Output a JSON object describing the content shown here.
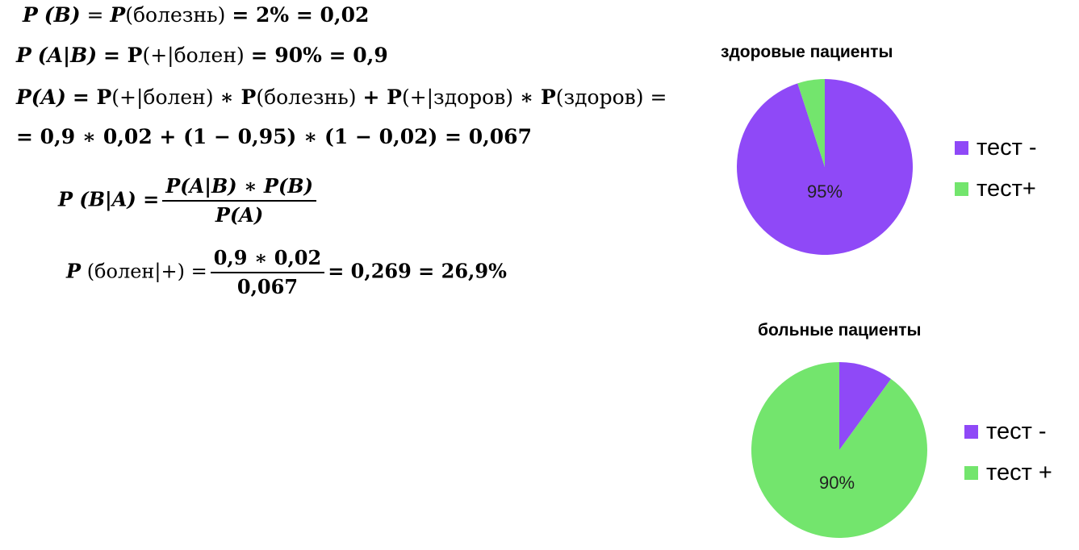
{
  "formulas": {
    "line1": {
      "lhs": "P",
      "b": "(B)",
      "eq1": "P",
      "word": "(болезнь)",
      "rest": "= 2% = 0,02"
    },
    "line2": {
      "lhs": "P",
      "cond": "(A|B)",
      "eq": "= P",
      "word": "(+|болен)",
      "rest": "= 90% = 0,9"
    },
    "line3": {
      "lhs": "P(A)",
      "eq": "= P",
      "w1": "(+|болен)",
      "op1": "∗ P",
      "w2": "(болезнь)",
      "op2": "+ P",
      "w3": "(+|здоров)",
      "op3": "∗ P",
      "w4": "(здоров)",
      "tail": "="
    },
    "line4": {
      "text": "= 0,9 ∗ 0,02 + (1 − 0,95) ∗ (1 − 0,02) = 0,067"
    },
    "bayes": {
      "lhs": "P (B|A) =",
      "num": "P(A|B) ∗ P(B)",
      "den": "P(A)"
    },
    "result": {
      "lhs_p": "P",
      "lhs_word": "(болен|+) =",
      "num": "0,9 ∗ 0,02",
      "den": "0,067",
      "rhs": "= 0,269 = 26,9%"
    }
  },
  "chart_data": [
    {
      "type": "pie",
      "title": "здоровые пациенты",
      "slices": [
        {
          "label": "тест -",
          "value": 95,
          "color": "#8f49f7"
        },
        {
          "label": "тест+",
          "value": 5,
          "color": "#73e56d"
        }
      ],
      "data_label": "95%",
      "legend": "right"
    },
    {
      "type": "pie",
      "title": "больные пациенты",
      "slices": [
        {
          "label": "тест -",
          "value": 10,
          "color": "#8f49f7"
        },
        {
          "label": "тест +",
          "value": 90,
          "color": "#73e56d"
        }
      ],
      "data_label": "90%",
      "legend": "right"
    }
  ]
}
